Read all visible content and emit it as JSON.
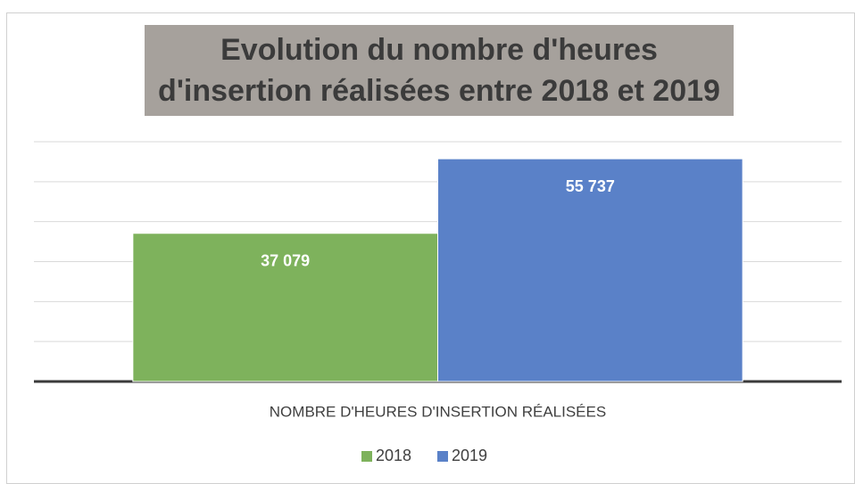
{
  "chart_data": {
    "type": "bar",
    "title": "Evolution du nombre d'heures d'insertion réalisées entre 2018 et 2019",
    "categories": [
      "NOMBRE D'HEURES D'INSERTION RÉALISÉES"
    ],
    "series": [
      {
        "name": "2018",
        "color": "#7eb25c",
        "values": [
          37079
        ],
        "value_labels": [
          "37 079"
        ]
      },
      {
        "name": "2019",
        "color": "#5a81c8",
        "values": [
          55737
        ],
        "value_labels": [
          "55 737"
        ]
      }
    ],
    "ylim": [
      0,
      60000
    ],
    "yticks": [
      0,
      10000,
      20000,
      30000,
      40000,
      50000,
      60000
    ],
    "grid": true,
    "legend": "bottom"
  }
}
